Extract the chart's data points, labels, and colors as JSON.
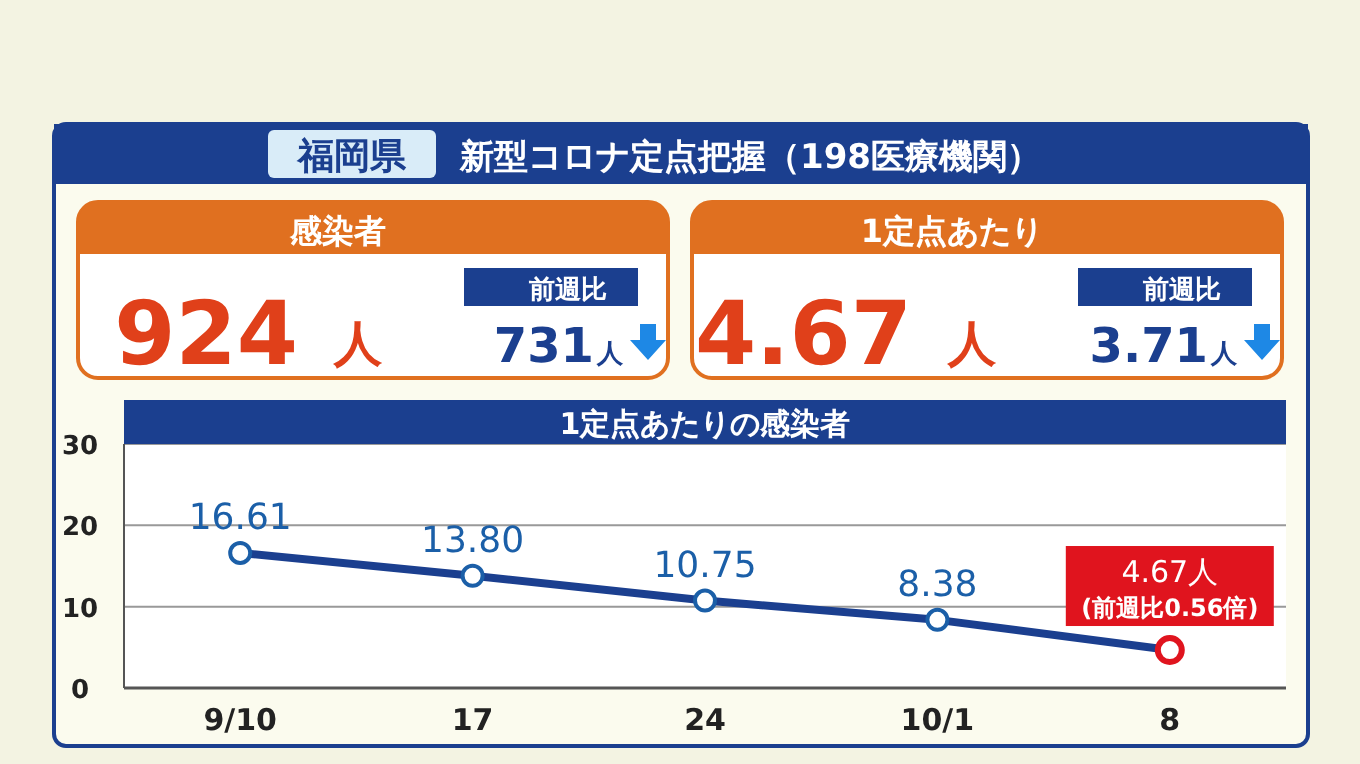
{
  "chart_data": {
    "type": "line",
    "title": "1定点あたりの感染者",
    "categories": [
      "9/10",
      "17",
      "24",
      "10/1",
      "8"
    ],
    "series": [
      {
        "color": "#1b3f8f",
        "colors": [
          "#1b5fa8",
          "#1b5fa8",
          "#1b5fa8",
          "#1b5fa8",
          "#e0141e"
        ],
        "values": [
          16.61,
          13.8,
          10.75,
          8.38,
          4.67
        ],
        "value_labels": [
          "16.61",
          "13.80",
          "10.75",
          "8.38",
          "4.67人"
        ]
      }
    ],
    "ylim": [
      0,
      30
    ],
    "yticks": [
      0,
      10,
      20,
      30
    ],
    "grid": "y",
    "marker": "circle",
    "annotations": [
      "福岡県",
      "新型コロナ定点把握（198医療機関）",
      "感染者",
      "924",
      "人",
      "前週比",
      "731",
      "人",
      "1定点あたり",
      "4.67",
      "人",
      "前週比",
      "3.71",
      "人",
      {
        "text": "(前週比0.56倍)",
        "x": "8",
        "y": 4.67
      }
    ]
  }
}
